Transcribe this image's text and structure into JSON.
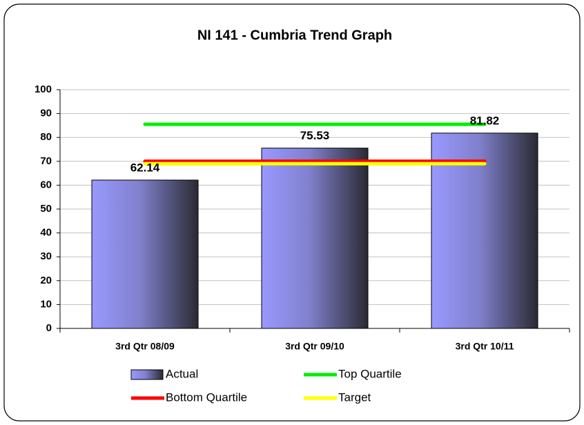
{
  "chart_data": {
    "type": "bar",
    "title": "NI 141 - Cumbria Trend Graph",
    "categories": [
      "3rd Qtr 08/09",
      "3rd Qtr 09/10",
      "3rd Qtr 10/11"
    ],
    "series": [
      {
        "name": "Actual",
        "type": "bar",
        "color": "#9999ff",
        "values": [
          62.14,
          75.53,
          81.82
        ]
      },
      {
        "name": "Top Quartile",
        "type": "line",
        "color": "#00ee00",
        "values": [
          85.5,
          85.5,
          85.5
        ]
      },
      {
        "name": "Bottom Quartile",
        "type": "line",
        "color": "#ff0000",
        "values": [
          70,
          70,
          70
        ]
      },
      {
        "name": "Target",
        "type": "line",
        "color": "#ffff00",
        "values": [
          69,
          69,
          69
        ]
      }
    ],
    "ylim": [
      0,
      100
    ],
    "yticks": [
      0,
      10,
      20,
      30,
      40,
      50,
      60,
      70,
      80,
      90,
      100
    ],
    "grid": true
  }
}
